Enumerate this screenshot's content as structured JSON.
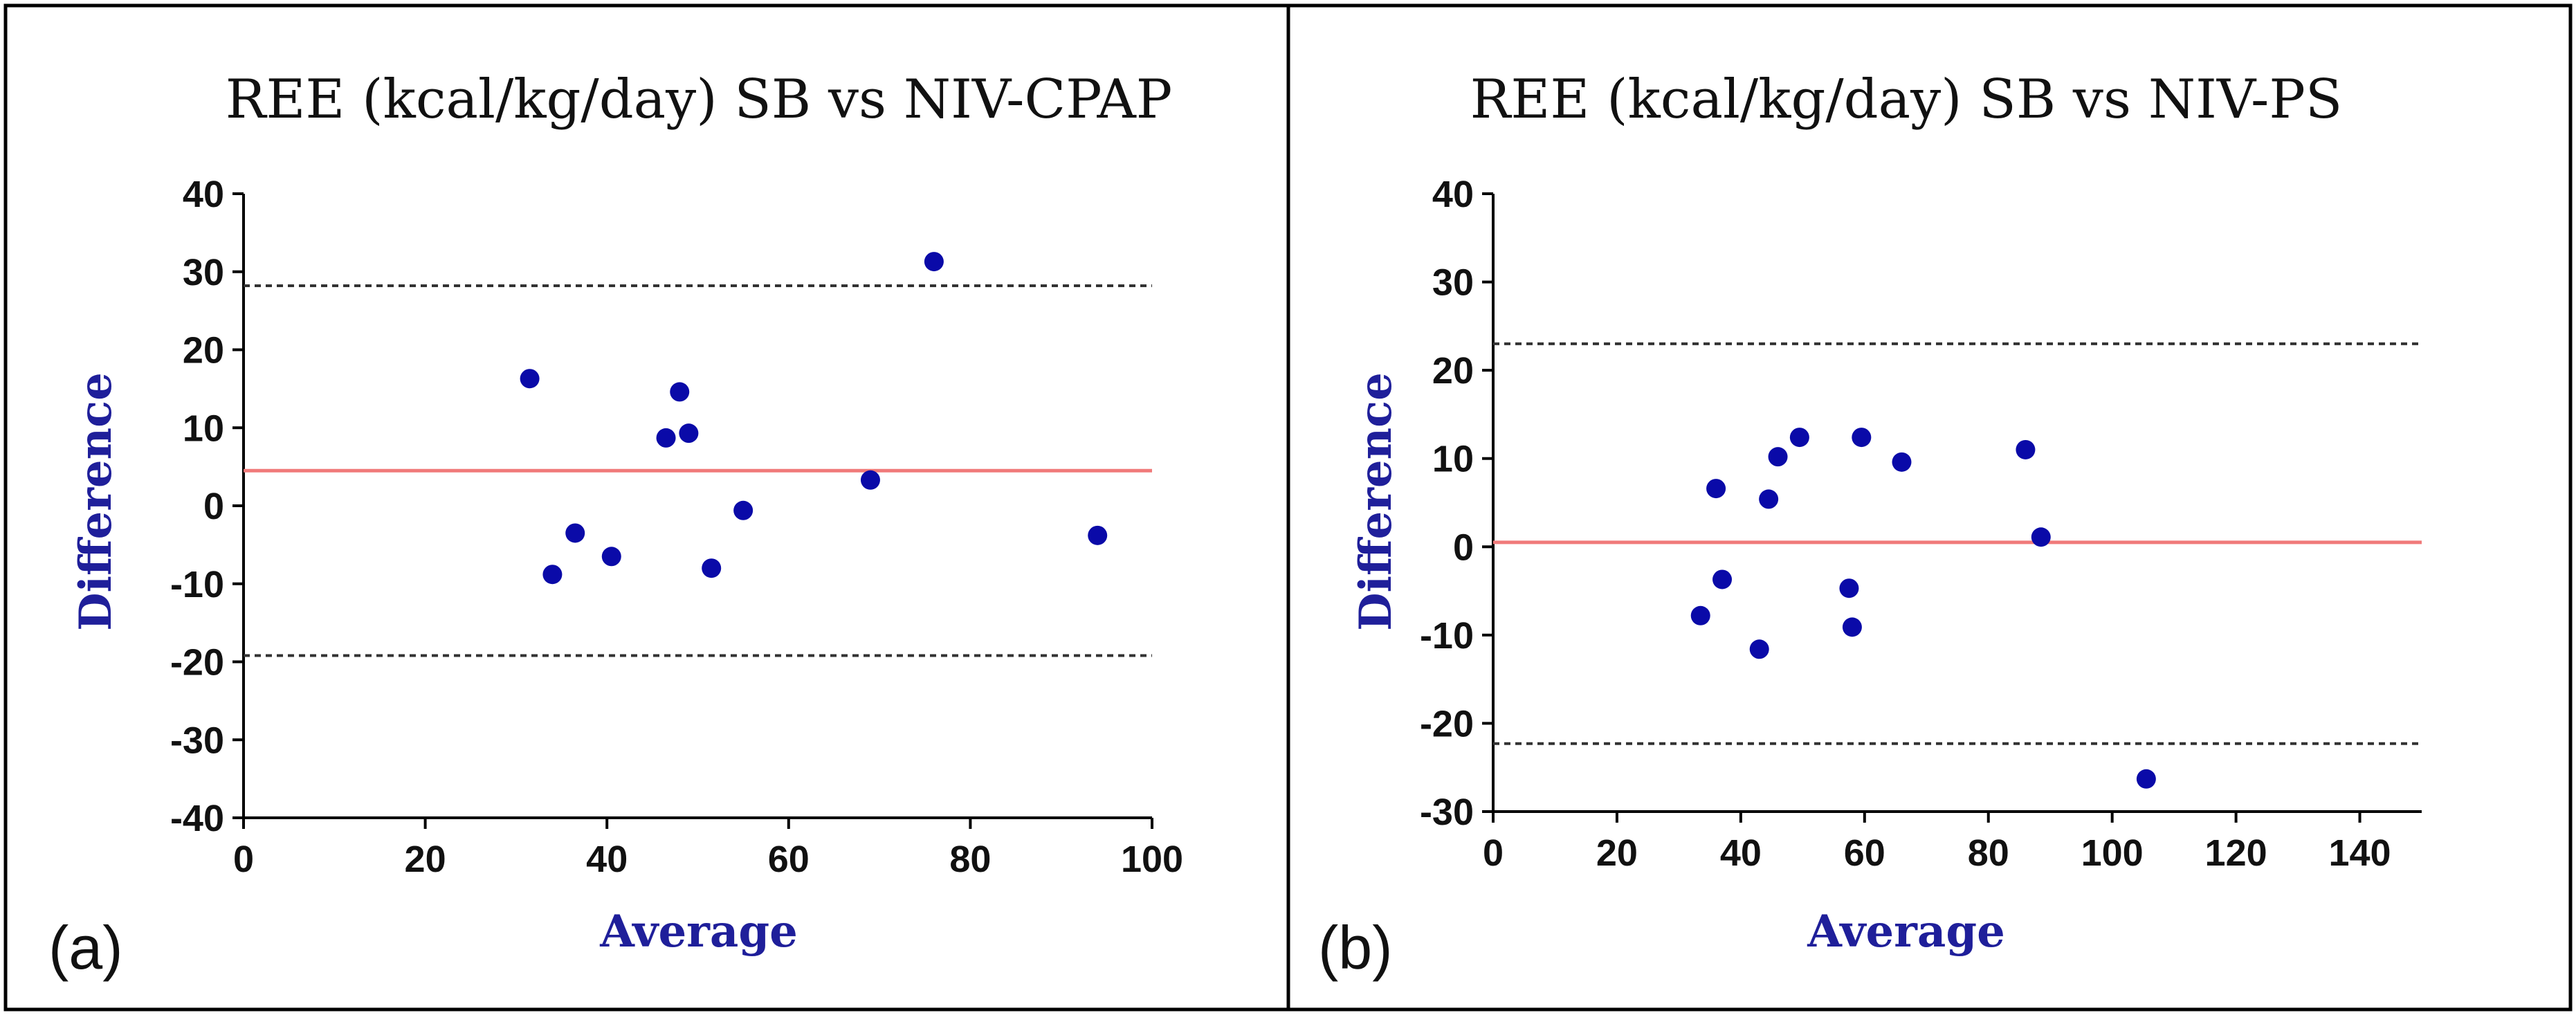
{
  "colors": {
    "points": "#0a0aa8",
    "mean_line": "#f07a7a",
    "limit_lines": "#333333",
    "axis_label": "#1f1f9a"
  },
  "chart_data": [
    {
      "type": "scatter",
      "panel_label": "(a)",
      "title": "REE (kcal/kg/day) SB vs NIV-CPAP",
      "xlabel": "Average",
      "ylabel": "Difference",
      "xlim": [
        0,
        100
      ],
      "ylim": [
        -40,
        40
      ],
      "xticks": [
        0,
        20,
        40,
        60,
        80,
        100
      ],
      "yticks": [
        -40,
        -30,
        -20,
        -10,
        0,
        10,
        20,
        30,
        40
      ],
      "mean_difference": 4.5,
      "upper_limit": 28.2,
      "lower_limit": -19.2,
      "points": [
        {
          "x": 31.5,
          "y": 16.3
        },
        {
          "x": 34.0,
          "y": -8.8
        },
        {
          "x": 36.5,
          "y": -3.5
        },
        {
          "x": 40.5,
          "y": -6.5
        },
        {
          "x": 46.5,
          "y": 8.7
        },
        {
          "x": 48.0,
          "y": 14.6
        },
        {
          "x": 49.0,
          "y": 9.3
        },
        {
          "x": 51.5,
          "y": -8.0
        },
        {
          "x": 55.0,
          "y": -0.6
        },
        {
          "x": 69.0,
          "y": 3.3
        },
        {
          "x": 76.0,
          "y": 31.3
        },
        {
          "x": 94.0,
          "y": -3.8
        }
      ]
    },
    {
      "type": "scatter",
      "panel_label": "(b)",
      "title": "REE (kcal/kg/day) SB vs NIV-PS",
      "xlabel": "Average",
      "ylabel": "Difference",
      "xlim": [
        0,
        150
      ],
      "ylim": [
        -30,
        40
      ],
      "xticks": [
        0,
        20,
        40,
        60,
        80,
        100,
        120,
        140
      ],
      "yticks": [
        -30,
        -20,
        -10,
        0,
        10,
        20,
        30,
        40
      ],
      "mean_difference": 0.5,
      "upper_limit": 23.0,
      "lower_limit": -22.3,
      "points": [
        {
          "x": 33.5,
          "y": -7.8
        },
        {
          "x": 36.0,
          "y": 6.6
        },
        {
          "x": 37.0,
          "y": -3.7
        },
        {
          "x": 43.0,
          "y": -11.6
        },
        {
          "x": 44.5,
          "y": 5.4
        },
        {
          "x": 46.0,
          "y": 10.2
        },
        {
          "x": 49.5,
          "y": 12.4
        },
        {
          "x": 57.5,
          "y": -4.7
        },
        {
          "x": 58.0,
          "y": -9.1
        },
        {
          "x": 59.5,
          "y": 12.4
        },
        {
          "x": 66.0,
          "y": 9.6
        },
        {
          "x": 86.0,
          "y": 11.0
        },
        {
          "x": 88.5,
          "y": 1.1
        },
        {
          "x": 105.5,
          "y": -26.3
        }
      ]
    }
  ]
}
